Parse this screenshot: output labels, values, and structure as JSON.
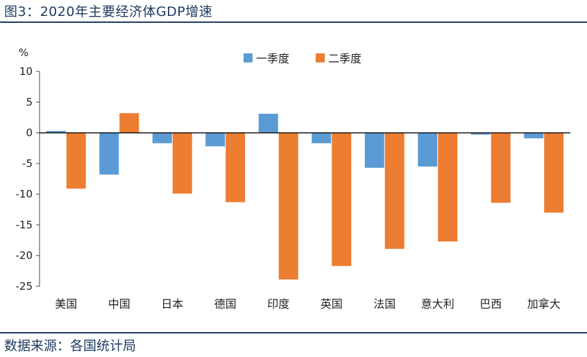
{
  "header": {
    "title": "图3：2020年主要经济体GDP增速"
  },
  "footer": {
    "source": "数据来源：各国统计局"
  },
  "colors": {
    "q1": "#5b9bd5",
    "q2": "#ed7d31",
    "rule": "#1f3b63"
  },
  "chart_data": {
    "type": "bar",
    "title": "",
    "ylabel": "%",
    "xlabel": "",
    "ylim": [
      -25,
      10
    ],
    "yticks": [
      10,
      5,
      0,
      -5,
      -10,
      -15,
      -20,
      -25
    ],
    "categories": [
      "美国",
      "中国",
      "日本",
      "德国",
      "印度",
      "英国",
      "法国",
      "意大利",
      "巴西",
      "加拿大"
    ],
    "series": [
      {
        "name": "一季度",
        "values": [
          0.3,
          -6.8,
          -1.7,
          -2.2,
          3.1,
          -1.7,
          -5.7,
          -5.5,
          -0.3,
          -0.9
        ]
      },
      {
        "name": "二季度",
        "values": [
          -9.1,
          3.2,
          -9.9,
          -11.3,
          -23.9,
          -21.7,
          -18.9,
          -17.7,
          -11.4,
          -13.0
        ]
      }
    ],
    "legend": "top-center"
  }
}
